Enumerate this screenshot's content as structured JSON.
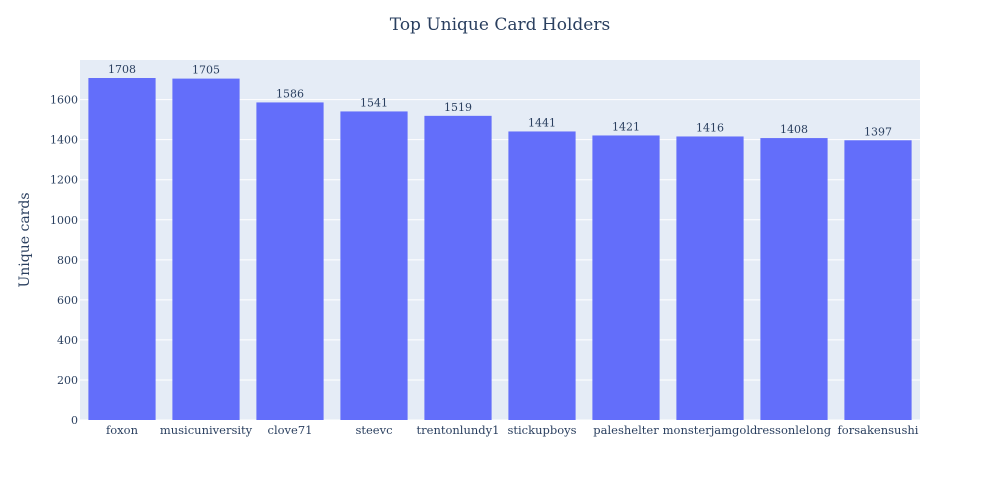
{
  "chart_data": {
    "type": "bar",
    "title": "Top Unique Card Holders",
    "xlabel": "",
    "ylabel": "Unique cards",
    "categories": [
      "foxon",
      "musicuniversity",
      "clove71",
      "steevc",
      "trentonlundy1",
      "stickupboys",
      "paleshelter",
      "monsterjamgold",
      "ressonlelong",
      "forsakensushi"
    ],
    "values": [
      1708,
      1705,
      1586,
      1541,
      1519,
      1441,
      1421,
      1416,
      1408,
      1397
    ],
    "ylim": [
      0,
      1797.9
    ],
    "yticks": [
      0,
      200,
      400,
      600,
      800,
      1000,
      1200,
      1400,
      1600
    ],
    "grid": true,
    "colors": {
      "bar": "#636efa",
      "plot_bg": "#e5ecf6",
      "grid": "#ffffff",
      "text": "#2a3f5f"
    }
  }
}
